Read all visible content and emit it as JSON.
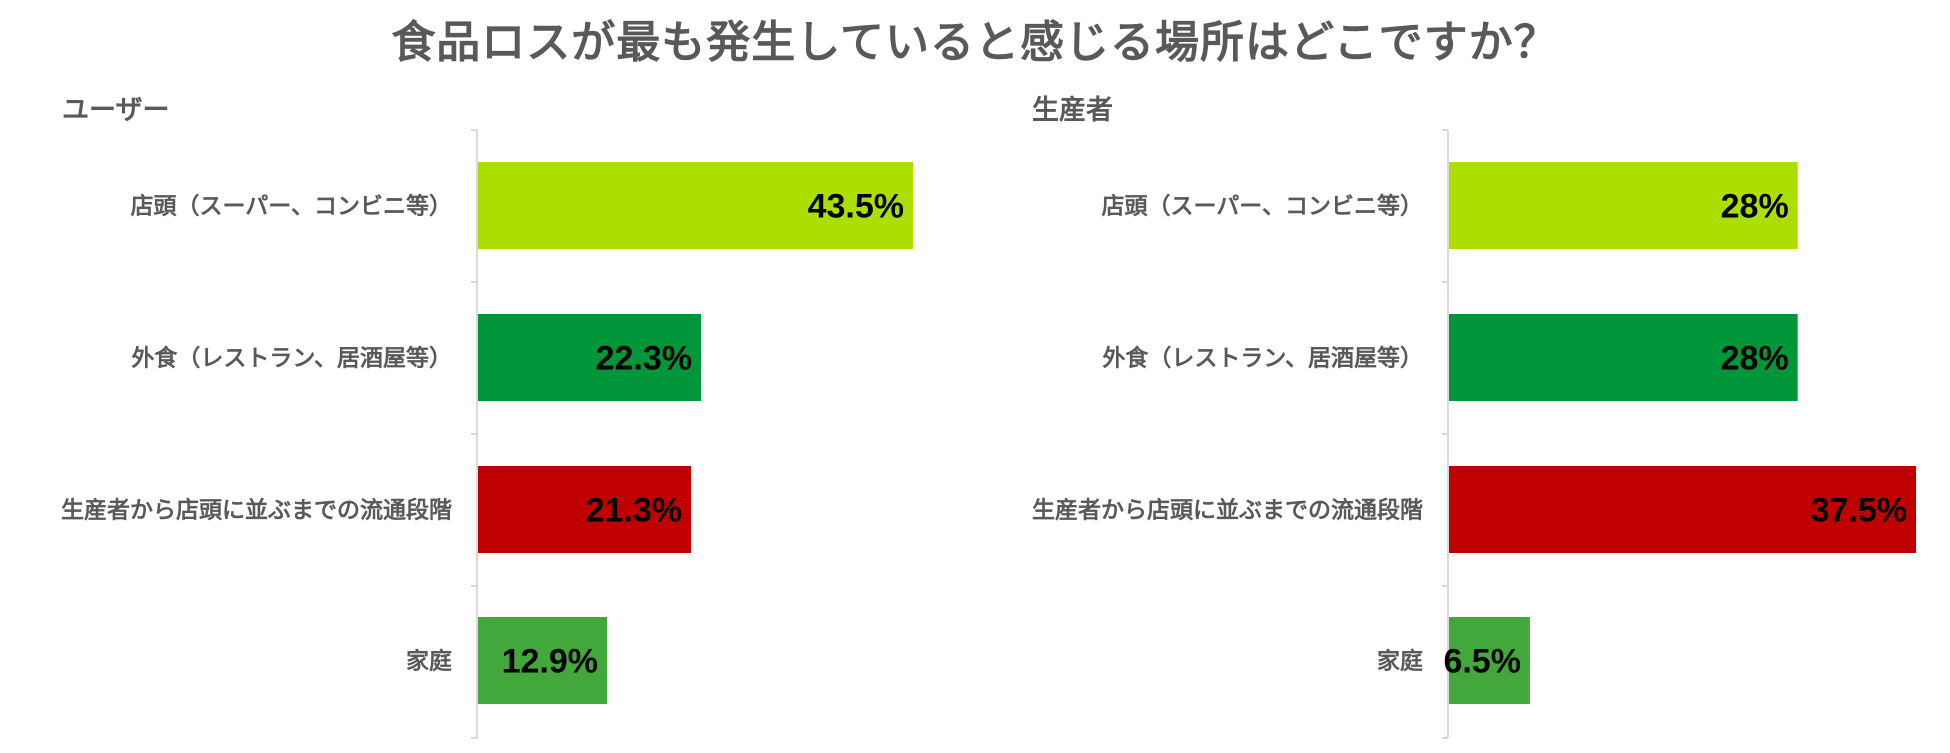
{
  "title": "食品ロスが最も発生していると感じる場所はどこですか？",
  "colors": {
    "title_text": "#595959",
    "axis": "#d9d9d9",
    "bars": [
      "#acdf00",
      "#009639",
      "#c00000",
      "#43a83b"
    ]
  },
  "chart_data": [
    {
      "type": "bar",
      "orientation": "horizontal",
      "title": "ユーザー",
      "categories": [
        "店頭（スーパー、コンビニ等）",
        "外食（レストラン、居酒屋等）",
        "生産者から店頭に並ぶまでの流通段階",
        "家庭"
      ],
      "values": [
        43.5,
        22.3,
        21.3,
        12.9
      ],
      "data_labels": [
        "43.5%",
        "22.3%",
        "21.3%",
        "12.9%"
      ],
      "unit": "%",
      "xlim": [
        0,
        43.5
      ],
      "grid": false,
      "legend": "none"
    },
    {
      "type": "bar",
      "orientation": "horizontal",
      "title": "生産者",
      "categories": [
        "店頭（スーパー、コンビニ等）",
        "外食（レストラン、居酒屋等）",
        "生産者から店頭に並ぶまでの流通段階",
        "家庭"
      ],
      "values": [
        28,
        28,
        37.5,
        6.5
      ],
      "data_labels": [
        "28%",
        "28%",
        "37.5%",
        "6.5%"
      ],
      "unit": "%",
      "xlim": [
        0,
        37.5
      ],
      "grid": false,
      "legend": "none"
    }
  ]
}
